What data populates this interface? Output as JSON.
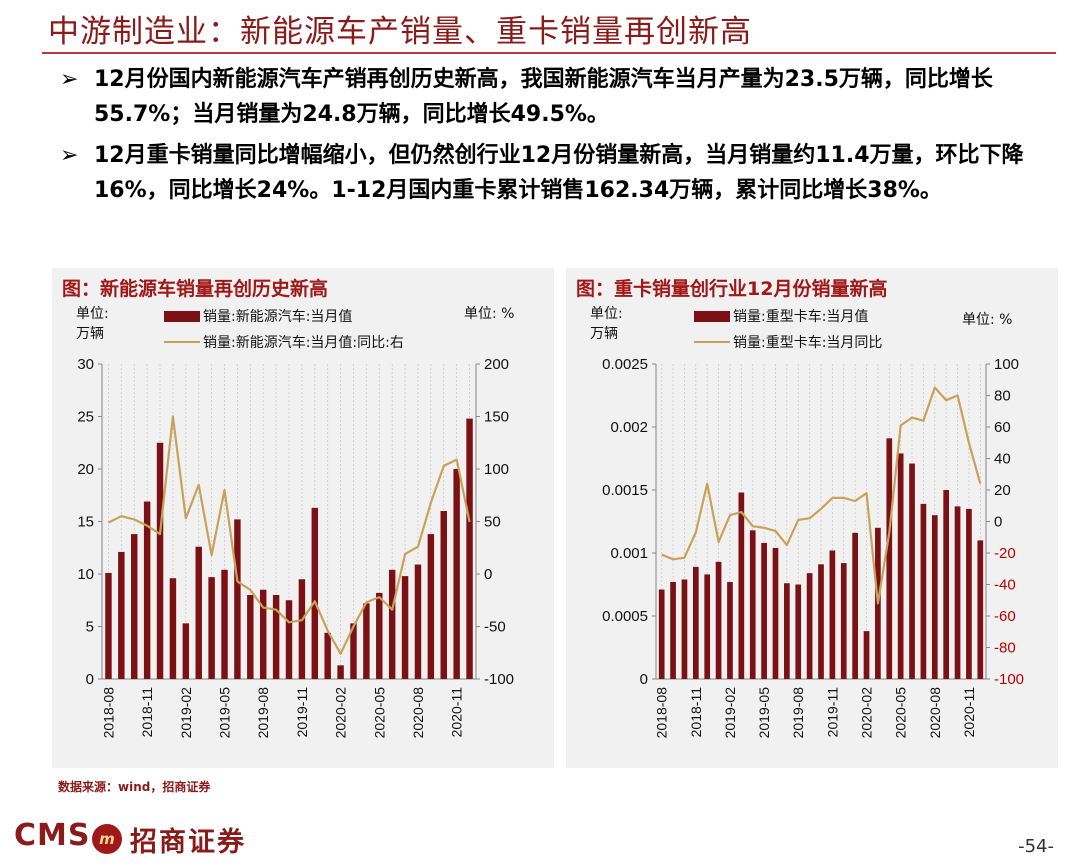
{
  "header": {
    "title": "中游制造业：新能源车产销量、重卡销量再创新高"
  },
  "bullets": [
    {
      "marker": "➢",
      "text": "12月份国内新能源汽车产销再创历史新高，我国新能源汽车当月产量为23.5万辆，同比增长55.7%；当月销量为24.8万辆，同比增长49.5%。"
    },
    {
      "marker": "➢",
      "text": "12月重卡销量同比增幅缩小，但仍然创行业12月份销量新高，当月销量约11.4万量，环比下降16%，同比增长24%。1-12月国内重卡累计销售162.34万辆，累计同比增长38%。"
    }
  ],
  "charts": {
    "left": {
      "title": "图：新能源车销量再创历史新高",
      "unit_left_1": "单位:",
      "unit_left_2": "万辆",
      "unit_right": "单位: %",
      "legend_bar": "销量:新能源汽车:当月值",
      "legend_line": "销量:新能源汽车:当月值:同比:右"
    },
    "right": {
      "title": "图：重卡销量创行业12月份销量新高",
      "unit_left_1": "单位:",
      "unit_left_2": "万辆",
      "unit_right": "单位: %",
      "legend_bar": "销量:重型卡车:当月值",
      "legend_line": "销量:重型卡车:当月同比"
    }
  },
  "chart_data": [
    {
      "type": "bar",
      "title": "图：新能源车销量再创历史新高",
      "categories": [
        "2018-08",
        "2018-09",
        "2018-10",
        "2018-11",
        "2018-12",
        "2019-01",
        "2019-02",
        "2019-03",
        "2019-04",
        "2019-05",
        "2019-06",
        "2019-07",
        "2019-08",
        "2019-09",
        "2019-10",
        "2019-11",
        "2019-12",
        "2020-01",
        "2020-02",
        "2020-03",
        "2020-04",
        "2020-05",
        "2020-06",
        "2020-07",
        "2020-08",
        "2020-09",
        "2020-10",
        "2020-11",
        "2020-12"
      ],
      "x_tick_labels": [
        "2018-08",
        "2018-11",
        "2019-02",
        "2019-05",
        "2019-08",
        "2019-11",
        "2020-02",
        "2020-05",
        "2020-08",
        "2020-11"
      ],
      "series": [
        {
          "name": "销量:新能源汽车:当月值",
          "axis": "left",
          "kind": "bar",
          "color": "#7b1114",
          "values": [
            10.1,
            12.1,
            13.8,
            16.9,
            22.5,
            9.6,
            5.3,
            12.6,
            9.7,
            10.4,
            15.2,
            8.0,
            8.5,
            8.0,
            7.5,
            9.5,
            16.3,
            4.4,
            1.3,
            5.3,
            7.2,
            8.2,
            10.4,
            9.8,
            10.9,
            13.8,
            16.0,
            20.0,
            24.8
          ]
        },
        {
          "name": "销量:新能源汽车:当月值:同比:右",
          "axis": "right",
          "kind": "line",
          "color": "#c8a25a",
          "values": [
            49,
            55,
            52,
            46,
            38,
            150,
            53,
            85,
            18,
            80,
            -7,
            -15,
            -32,
            -34,
            -46,
            -44,
            -26,
            -54,
            -76,
            -50,
            -27,
            -22,
            -34,
            19,
            26,
            68,
            103,
            109,
            49.5
          ]
        }
      ],
      "ylim_left": [
        0,
        30
      ],
      "yticks_left": [
        0,
        5,
        10,
        15,
        20,
        25,
        30
      ],
      "ylim_right": [
        -100,
        200
      ],
      "yticks_right": [
        -100,
        -50,
        0,
        50,
        100,
        150,
        200
      ],
      "grid": "vertical dashed"
    },
    {
      "type": "bar",
      "title": "图：重卡销量创行业12月份销量新高",
      "categories": [
        "2018-08",
        "2018-09",
        "2018-10",
        "2018-11",
        "2018-12",
        "2019-01",
        "2019-02",
        "2019-03",
        "2019-04",
        "2019-05",
        "2019-06",
        "2019-07",
        "2019-08",
        "2019-09",
        "2019-10",
        "2019-11",
        "2019-12",
        "2020-01",
        "2020-02",
        "2020-03",
        "2020-04",
        "2020-05",
        "2020-06",
        "2020-07",
        "2020-08",
        "2020-09",
        "2020-10",
        "2020-11",
        "2020-12"
      ],
      "x_tick_labels": [
        "2018-08",
        "2018-11",
        "2019-02",
        "2019-05",
        "2019-08",
        "2019-11",
        "2020-02",
        "2020-05",
        "2020-08",
        "2020-11"
      ],
      "series": [
        {
          "name": "销量:重型卡车:当月值",
          "axis": "left",
          "kind": "bar",
          "color": "#7b1114",
          "values": [
            0.00071,
            0.00077,
            0.00079,
            0.00089,
            0.00083,
            0.00093,
            0.00077,
            0.00148,
            0.00118,
            0.00108,
            0.00104,
            0.00076,
            0.00075,
            0.00084,
            0.00091,
            0.00102,
            0.00092,
            0.00116,
            0.00038,
            0.0012,
            0.00191,
            0.00179,
            0.00171,
            0.00139,
            0.0013,
            0.0015,
            0.00137,
            0.00135,
            0.0011
          ]
        },
        {
          "name": "销量:重型卡车:当月同比",
          "axis": "right",
          "kind": "line",
          "color": "#c8a25a",
          "values": [
            -21,
            -24,
            -23,
            -7,
            24,
            -13,
            4,
            6,
            -3,
            -4,
            -6,
            -15,
            1,
            2,
            8,
            15,
            15,
            13,
            18,
            -52,
            -7,
            61,
            66,
            64,
            85,
            77,
            80,
            50,
            24
          ]
        }
      ],
      "ylim_left": [
        0,
        0.0025
      ],
      "yticks_left": [
        "0",
        "0.0005",
        "0.001",
        "0.0015",
        "0.002",
        "0.0025"
      ],
      "ylim_right": [
        -100,
        100
      ],
      "yticks_right": [
        -100,
        -80,
        -60,
        -40,
        -20,
        0,
        20,
        40,
        60,
        80,
        100
      ],
      "negative_tick_color": "#c00000",
      "grid": "vertical dashed"
    }
  ],
  "source": {
    "text": "数据来源：wind，招商证券"
  },
  "footer": {
    "logo_text": "CMS",
    "logo_emblem": "m",
    "logo_cn": "招商证券",
    "page_number": "-54-"
  }
}
